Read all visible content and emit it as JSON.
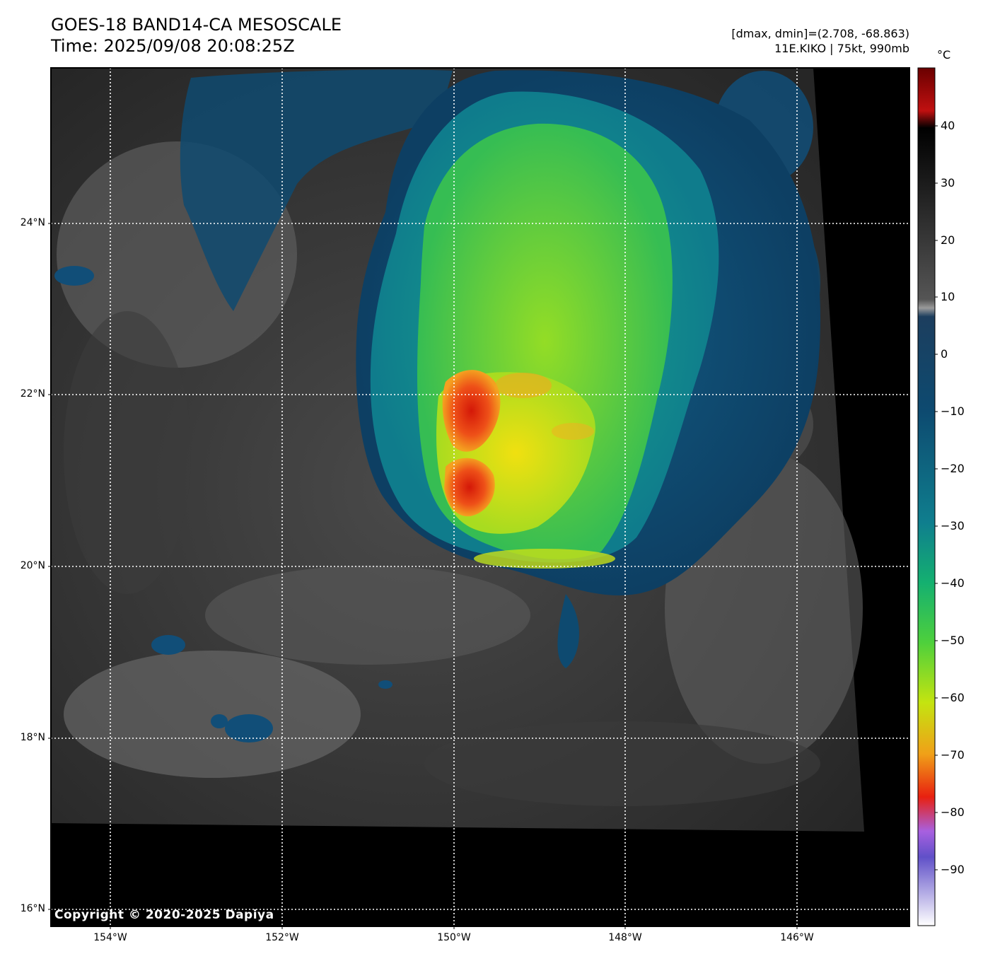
{
  "header": {
    "title_line1": "GOES-18 BAND14-CA MESOSCALE",
    "title_line2": "Time: 2025/09/08 20:08:25Z",
    "range_text": "[dmax, dmin]=(2.708, -68.863)",
    "storm_text": "11E.KIKO | 75kt, 990mb"
  },
  "colorbar": {
    "unit": "°C",
    "ticks": [
      "40",
      "30",
      "20",
      "10",
      "0",
      "−10",
      "−20",
      "−30",
      "−40",
      "−50",
      "−60",
      "−70",
      "−80",
      "−90"
    ]
  },
  "axes": {
    "lat_labels": [
      "24°N",
      "22°N",
      "20°N",
      "18°N",
      "16°N"
    ],
    "lon_labels": [
      "154°W",
      "152°W",
      "150°W",
      "148°W",
      "146°W"
    ]
  },
  "copyright": "Copyright © 2020-2025 Dapiya",
  "colors": {
    "cloud_gray": "#5a5a5a",
    "cold_blue": "#0e4a72",
    "cold_teal": "#0f8a8c",
    "cold_green": "#3ec85a",
    "cold_yellow": "#d8e410",
    "cold_orange": "#f08020",
    "cold_red": "#d82010",
    "nodata": "#000000"
  },
  "features": {
    "storm_name": "11E.KIKO",
    "coldest_cloud_top_c": -68.863,
    "warmest_c": 2.708
  }
}
